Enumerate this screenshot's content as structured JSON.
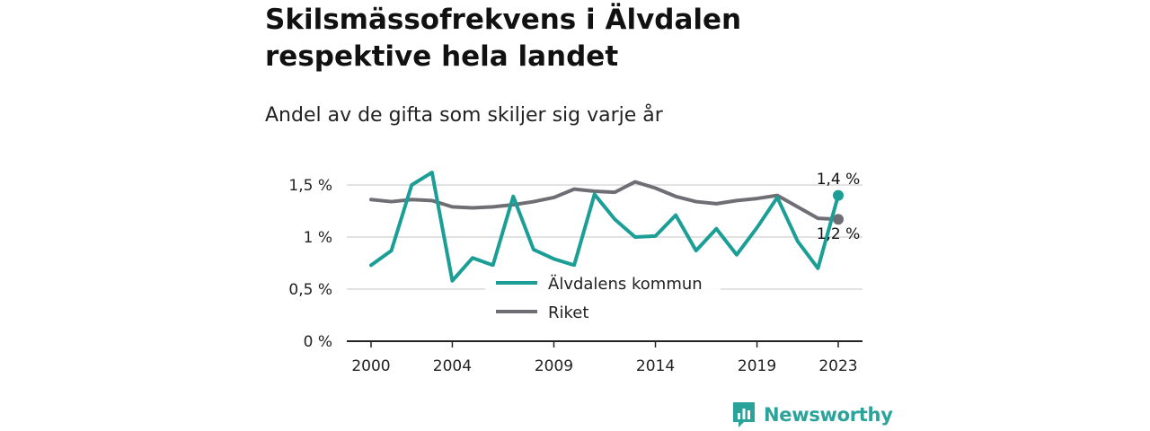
{
  "title": "Skilsmässofrekvens i Älvdalen respektive hela landet",
  "subtitle": "Andel av de gifta som skiljer sig varje år",
  "brand": {
    "name": "Newsworthy",
    "icon": "bar-chart-speech-bubble-icon",
    "color": "#2aa39a"
  },
  "chart_data": {
    "type": "line",
    "title": "Skilsmässofrekvens i Älvdalen respektive hela landet",
    "subtitle": "Andel av de gifta som skiljer sig varje år",
    "xlabel": "",
    "ylabel": "",
    "x": [
      2000,
      2001,
      2002,
      2003,
      2004,
      2005,
      2006,
      2007,
      2008,
      2009,
      2010,
      2011,
      2012,
      2013,
      2014,
      2015,
      2016,
      2017,
      2018,
      2019,
      2020,
      2021,
      2022,
      2023
    ],
    "x_ticks": [
      "2000",
      "2004",
      "2009",
      "2014",
      "2019",
      "2023"
    ],
    "y_ticks": [
      "0 %",
      "0,5 %",
      "1 %",
      "1,5 %"
    ],
    "ylim": [
      0,
      1.6
    ],
    "grid": "horizontal",
    "legend_position": "bottom-center",
    "series": [
      {
        "name": "Älvdalens kommun",
        "color": "#1a9e96",
        "values": [
          0.73,
          0.87,
          1.5,
          1.62,
          0.58,
          0.8,
          0.73,
          1.39,
          0.88,
          0.79,
          0.73,
          1.41,
          1.17,
          1.0,
          1.01,
          1.21,
          0.87,
          1.08,
          0.83,
          1.09,
          1.38,
          0.96,
          0.7,
          1.4
        ],
        "end_label": "1,4 %"
      },
      {
        "name": "Riket",
        "color": "#6f6e74",
        "values": [
          1.36,
          1.34,
          1.36,
          1.35,
          1.29,
          1.28,
          1.29,
          1.31,
          1.34,
          1.38,
          1.46,
          1.44,
          1.43,
          1.53,
          1.47,
          1.39,
          1.34,
          1.32,
          1.35,
          1.37,
          1.4,
          1.29,
          1.18,
          1.17
        ],
        "end_label": "1,2 %"
      }
    ]
  }
}
